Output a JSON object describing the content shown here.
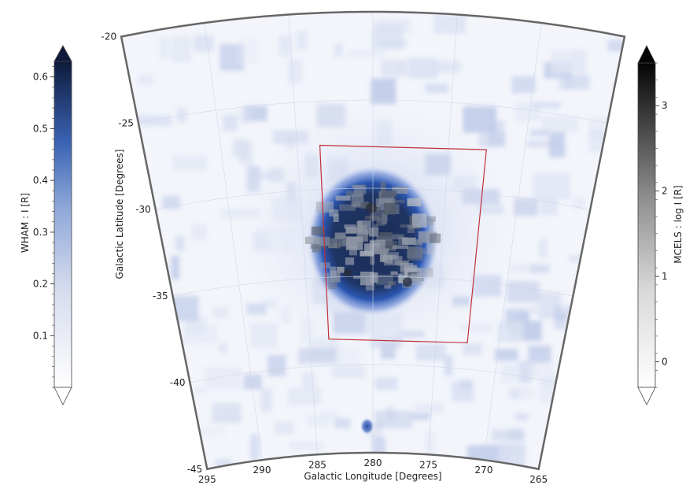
{
  "chart_data": {
    "type": "heatmap",
    "title": "",
    "xlabel": "Galactic Longitude [Degrees]",
    "ylabel": "Galactic Latitude [Degrees]",
    "x_ticks": [
      "295",
      "290",
      "285",
      "280",
      "275",
      "270",
      "265"
    ],
    "y_ticks": [
      "-20",
      "-25",
      "-30",
      "-35",
      "-40",
      "-45"
    ],
    "xlim": [
      295,
      265
    ],
    "ylim": [
      -45,
      -20
    ],
    "grid": true,
    "projection": "curved (conic)",
    "colorbars": [
      {
        "label": "WHAM : I [R]",
        "placement": "left",
        "cmap": "white-to-dark-blue",
        "color_low": "#ffffff",
        "color_high": "#0d1a3a",
        "ticks": [
          "0.1",
          "0.2",
          "0.3",
          "0.4",
          "0.5",
          "0.6"
        ],
        "range": [
          0.0,
          0.63
        ],
        "extend": "both"
      },
      {
        "label": "MCELS : log I [R]",
        "placement": "right",
        "cmap": "white-to-black",
        "color_low": "#ffffff",
        "color_high": "#000000",
        "ticks": [
          "0",
          "1",
          "2",
          "3"
        ],
        "range": [
          -0.3,
          3.5
        ],
        "extend": "both"
      }
    ],
    "overlay": {
      "shape": "rectangle",
      "color": "#c0303a",
      "lon_range": [
        283.5,
        272.5
      ],
      "lat_range": [
        -38.5,
        -27.5
      ]
    },
    "features": [
      {
        "kind": "disk",
        "center_lon": 280,
        "center_lat": -33,
        "radius_deg": 4.5,
        "intensity": 0.6
      },
      {
        "kind": "point",
        "center_lon": 280.5,
        "center_lat": -43.5,
        "intensity": 0.45
      }
    ]
  }
}
